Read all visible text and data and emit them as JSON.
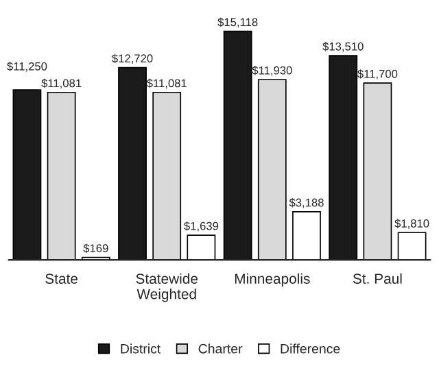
{
  "chart_data": {
    "type": "bar",
    "categories": [
      "State",
      "Statewide\nWeighted",
      "Minneapolis",
      "St. Paul"
    ],
    "series": [
      {
        "name": "District",
        "color": "#1a1a1a",
        "values": [
          11250,
          12720,
          15118,
          13510
        ],
        "value_labels": [
          "$11,250",
          "$12,720",
          "$15,118",
          "$13,510"
        ]
      },
      {
        "name": "Charter",
        "color": "#d9d9d9",
        "values": [
          11081,
          11081,
          11930,
          11700
        ],
        "value_labels": [
          "$11,081",
          "$11,081",
          "$11,930",
          "$11,700"
        ]
      },
      {
        "name": "Difference",
        "color": "#ffffff",
        "values": [
          169,
          1639,
          3188,
          1810
        ],
        "value_labels": [
          "$169",
          "$1,639",
          "$3,188",
          "$1,810"
        ]
      }
    ],
    "legend": "bottom",
    "grid": false,
    "tick_labels": "x"
  }
}
